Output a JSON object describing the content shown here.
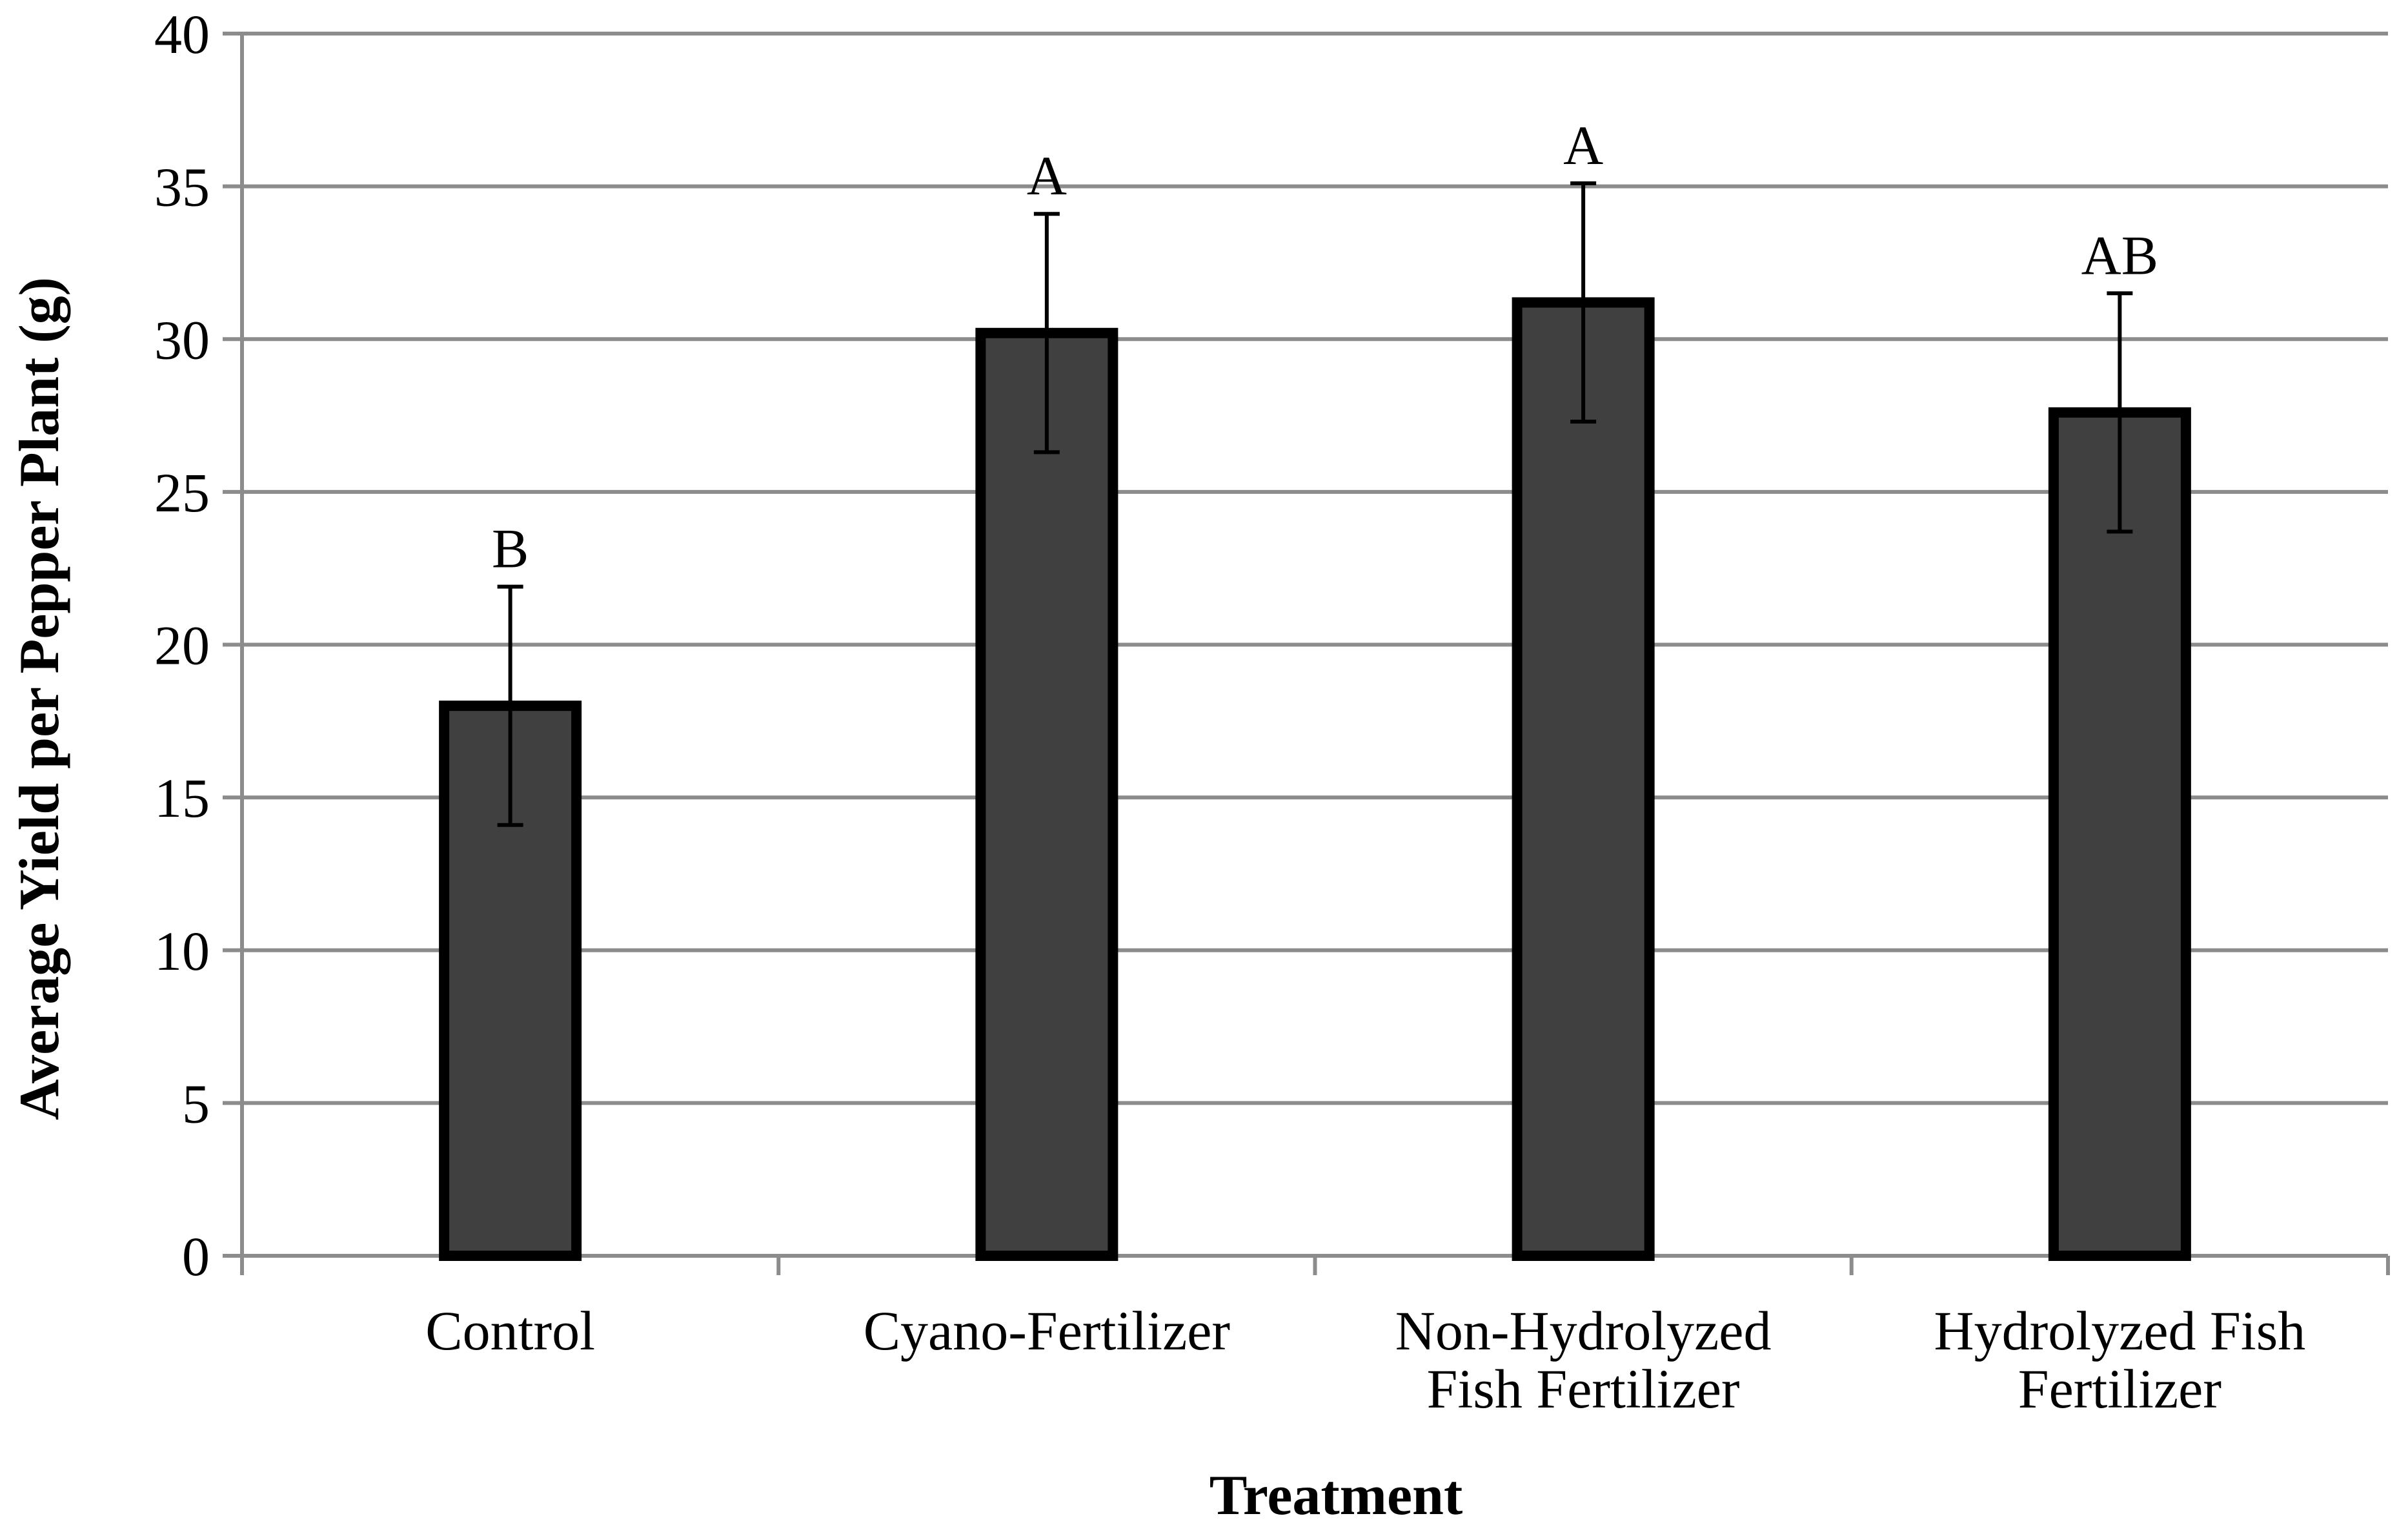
{
  "chart_data": {
    "type": "bar",
    "title": "",
    "xlabel": "Treatment",
    "ylabel": "Average Yield per Pepper Plant (g)",
    "ylim": [
      0,
      40
    ],
    "yticks": [
      0,
      5,
      10,
      15,
      20,
      25,
      30,
      35,
      40
    ],
    "grid": true,
    "categories": [
      [
        "Control"
      ],
      [
        "Cyano-Fertilizer"
      ],
      [
        "Non-Hydrolyzed",
        "Fish Fertilizer"
      ],
      [
        "Hydrolyzed Fish",
        "Fertilizer"
      ]
    ],
    "values": [
      18.0,
      30.2,
      31.2,
      27.6
    ],
    "error": [
      3.9,
      3.9,
      3.9,
      3.9
    ],
    "significance": [
      "B",
      "A",
      "A",
      "AB"
    ],
    "colors": {
      "bar_fill": "#404040",
      "bar_edge": "#000000",
      "grid": "#8c8c8c",
      "axis": "#8c8c8c"
    }
  }
}
